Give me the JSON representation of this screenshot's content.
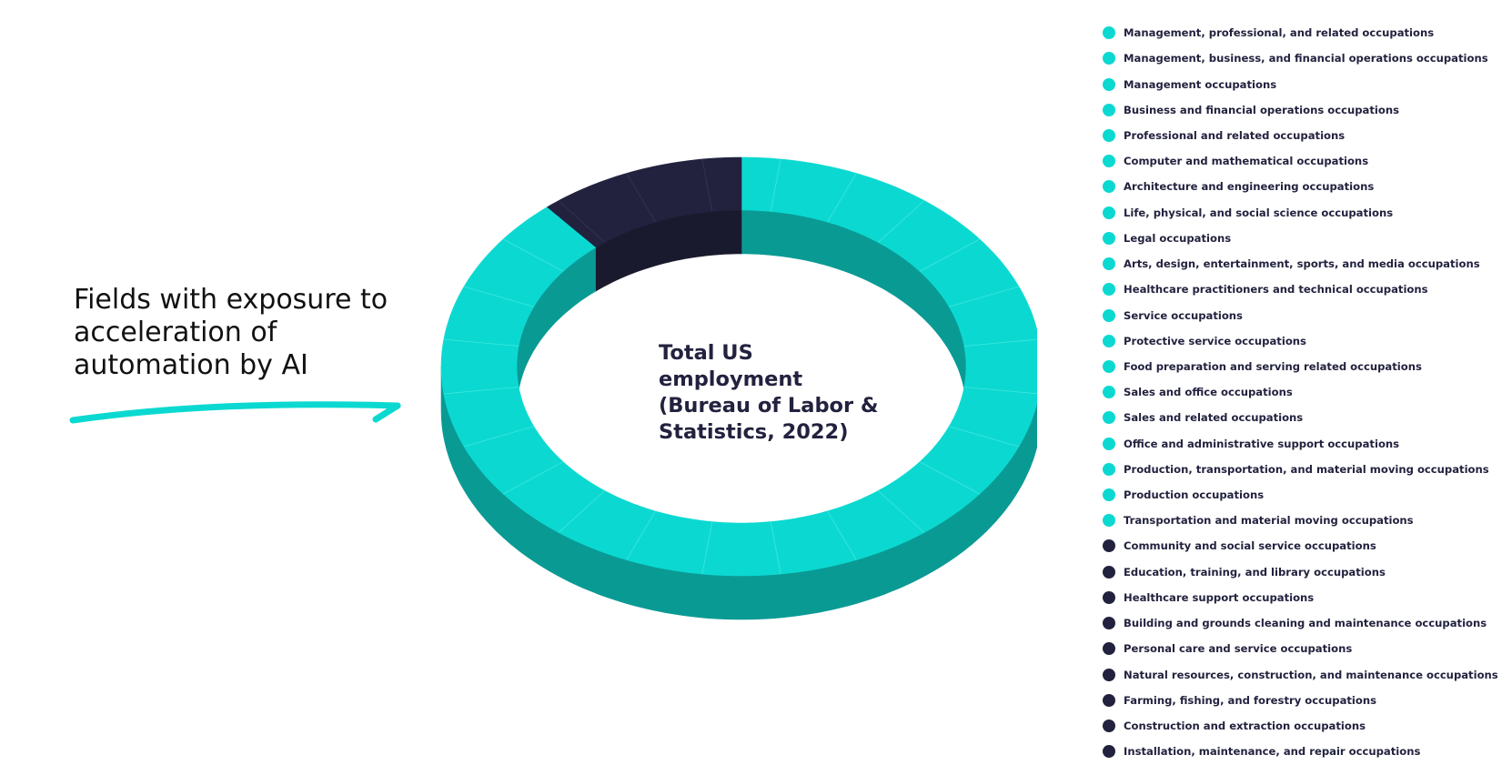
{
  "callout": {
    "lines": [
      "Fields with exposure to",
      "acceleration of",
      "automation by AI"
    ]
  },
  "center_title": {
    "lines": [
      "Total US",
      "employment",
      "(Bureau of Labor &",
      "Statistics, 2022)"
    ]
  },
  "colors": {
    "exposed": "#0bd9d1",
    "exposed_side": "#0a9a94",
    "not_exposed": "#22223f",
    "not_exposed_side": "#1a1a2f",
    "seam": "#3fe6df",
    "text": "#22223f"
  },
  "chart_data": {
    "type": "pie",
    "title": "",
    "series": [
      {
        "name": "Fields with exposure to acceleration of automation by AI",
        "value": 88.8
      },
      {
        "name": "",
        "value": 11.2
      }
    ],
    "legend_position": "right",
    "legend": [
      {
        "label": "Management, professional, and related occupations",
        "group": "exposed"
      },
      {
        "label": "Management, business, and financial operations occupations",
        "group": "exposed"
      },
      {
        "label": "Management occupations",
        "group": "exposed"
      },
      {
        "label": "Business and financial operations occupations",
        "group": "exposed"
      },
      {
        "label": "Professional and related occupations",
        "group": "exposed"
      },
      {
        "label": "Computer and mathematical occupations",
        "group": "exposed"
      },
      {
        "label": "Architecture and engineering occupations",
        "group": "exposed"
      },
      {
        "label": "Life, physical, and social science occupations",
        "group": "exposed"
      },
      {
        "label": "Legal occupations",
        "group": "exposed"
      },
      {
        "label": "Arts, design, entertainment, sports, and media occupations",
        "group": "exposed"
      },
      {
        "label": "Healthcare practitioners and technical occupations",
        "group": "exposed"
      },
      {
        "label": "Service occupations",
        "group": "exposed"
      },
      {
        "label": "Protective service occupations",
        "group": "exposed"
      },
      {
        "label": "Food preparation and serving related occupations",
        "group": "exposed"
      },
      {
        "label": "Sales and office occupations",
        "group": "exposed"
      },
      {
        "label": "Sales and related occupations",
        "group": "exposed"
      },
      {
        "label": "Office and administrative support occupations",
        "group": "exposed"
      },
      {
        "label": "Production, transportation, and material moving occupations",
        "group": "exposed"
      },
      {
        "label": "Production occupations",
        "group": "exposed"
      },
      {
        "label": "Transportation and material moving occupations",
        "group": "exposed"
      },
      {
        "label": "Community and social service occupations",
        "group": "not_exposed"
      },
      {
        "label": "Education, training, and library occupations",
        "group": "not_exposed"
      },
      {
        "label": "Healthcare support occupations",
        "group": "not_exposed"
      },
      {
        "label": "Building and grounds cleaning and maintenance occupations",
        "group": "not_exposed"
      },
      {
        "label": "Personal care and service occupations",
        "group": "not_exposed"
      },
      {
        "label": "Natural resources, construction, and maintenance occupations",
        "group": "not_exposed"
      },
      {
        "label": "Farming, fishing, and forestry occupations",
        "group": "not_exposed"
      },
      {
        "label": "Construction and extraction occupations",
        "group": "not_exposed"
      },
      {
        "label": "Installation, maintenance, and repair occupations",
        "group": "not_exposed"
      }
    ]
  }
}
